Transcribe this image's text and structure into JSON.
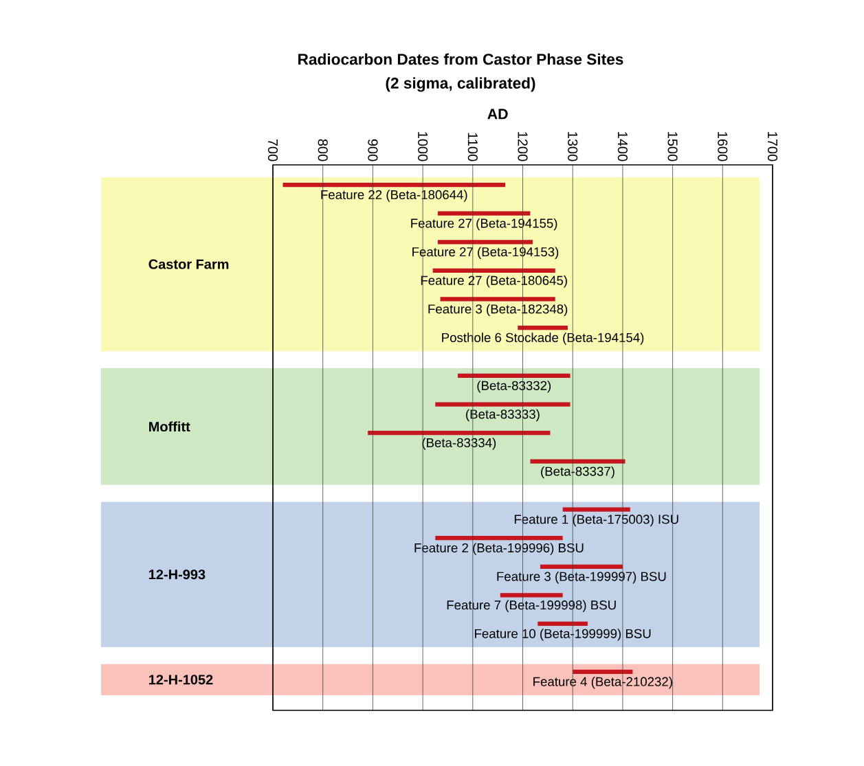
{
  "chart_data": {
    "type": "bar",
    "orientation": "horizontal",
    "title": "Radiocarbon Dates from Castor Phase Sites",
    "subtitle": "(2 sigma, calibrated)",
    "xlabel": "AD",
    "categories": [
      null,
      null,
      null,
      null,
      null,
      null,
      null,
      null,
      null,
      null,
      null,
      null,
      null,
      null,
      null,
      null
    ],
    "base": [
      720,
      1030,
      1030,
      1020,
      1035,
      1190,
      1070,
      1025,
      890,
      1215,
      1280,
      1025,
      1235,
      1155,
      1230,
      1300
    ],
    "values": [
      445,
      185,
      190,
      245,
      230,
      100,
      225,
      270,
      365,
      190,
      135,
      255,
      165,
      125,
      100,
      120
    ],
    "value_labels": [
      "Feature 22 (Beta-180644)",
      "Feature 27 (Beta-194155)",
      "Feature 27 (Beta-194153)",
      "Feature 27 (Beta-180645)",
      "Feature 3 (Beta-182348)",
      "Posthole 6 Stockade (Beta-194154)",
      "(Beta-83332)",
      "(Beta-83333)",
      "(Beta-83334)",
      "(Beta-83337)",
      "Feature 1 (Beta-175003) ISU",
      "Feature 2 (Beta-199996) BSU",
      "Feature 3 (Beta-199997) BSU",
      "Feature 7 (Beta-199998) BSU",
      "Feature 10 (Beta-199999) BSU",
      "Feature 4 (Beta-210232)"
    ],
    "color": "#c8161e",
    "xlim": [
      700,
      1700
    ],
    "xticks": [
      700,
      800,
      900,
      1000,
      1100,
      1200,
      1300,
      1400,
      1500,
      1600,
      1700
    ],
    "grid": "x",
    "tick_labels": "x",
    "annotations": [
      "Castor Farm",
      "Moffitt",
      "12-H-993",
      "12-H-1052"
    ]
  }
}
